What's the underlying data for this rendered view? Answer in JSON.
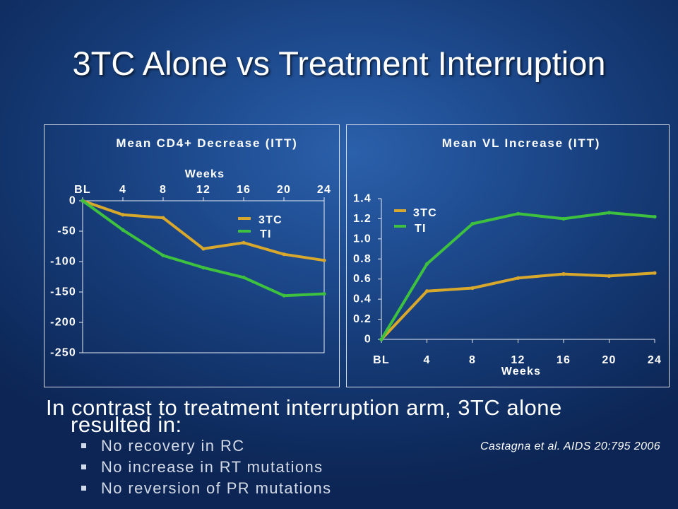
{
  "slide": {
    "title": "3TC Alone vs Treatment Interruption",
    "lead_text": "In contrast to treatment interruption arm, 3TC alone resulted in:",
    "bullets": [
      "No recovery in RC",
      "No increase in RT mutations",
      "No reversion of PR mutations"
    ],
    "citation": "Castagna et al. AIDS 20:795 2006"
  },
  "colors": {
    "background": "#1a4588",
    "text": "#ffffff",
    "bullet_text": "#d3dae6"
  },
  "chart_data": [
    {
      "type": "line",
      "title": "Mean CD4+ Decrease (ITT)",
      "xlabel": "Weeks",
      "x_axis_position": "top",
      "categories": [
        "BL",
        "4",
        "8",
        "12",
        "16",
        "20",
        "24"
      ],
      "ylim": [
        -250,
        0
      ],
      "yticks": [
        0,
        -50,
        -100,
        -150,
        -200,
        -250
      ],
      "ytick_labels": [
        "0",
        "-50",
        "-100",
        "-150",
        "-200",
        "-250"
      ],
      "grid": false,
      "legend": "top-right",
      "series": [
        {
          "name": "3TC",
          "color": "#d8a82c",
          "values": [
            0,
            -23,
            -28,
            -79,
            -69,
            -88,
            -98
          ]
        },
        {
          "name": "TI",
          "color": "#3ec13e",
          "values": [
            0,
            -48,
            -90,
            -110,
            -126,
            -156,
            -153
          ]
        }
      ]
    },
    {
      "type": "line",
      "title": "Mean VL Increase (ITT)",
      "xlabel": "Weeks",
      "x_axis_position": "bottom",
      "categories": [
        "BL",
        "4",
        "8",
        "12",
        "16",
        "20",
        "24"
      ],
      "ylim": [
        0,
        1.4
      ],
      "yticks": [
        1.4,
        1.2,
        1.0,
        0.8,
        0.6,
        0.4,
        0.2,
        0
      ],
      "ytick_labels": [
        "1.4",
        "1.2",
        "1.0",
        "0.8",
        "0.6",
        "0.4",
        "0.2",
        "0"
      ],
      "grid": false,
      "legend": "top-left",
      "series": [
        {
          "name": "3TC",
          "color": "#d8a82c",
          "values": [
            0,
            0.48,
            0.51,
            0.61,
            0.65,
            0.63,
            0.66
          ]
        },
        {
          "name": "TI",
          "color": "#3ec13e",
          "values": [
            0,
            0.75,
            1.15,
            1.25,
            1.2,
            1.26,
            1.22
          ]
        }
      ]
    }
  ]
}
